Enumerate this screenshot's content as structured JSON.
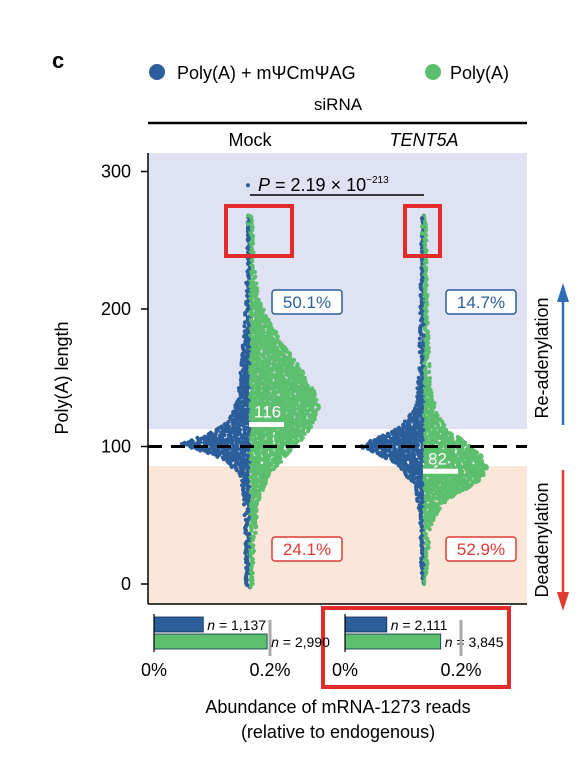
{
  "panel_label": "c",
  "colors": {
    "blue": "#2b5e9b",
    "green": "#5cbf6e",
    "top_bg": "#dfe2f2",
    "bottom_bg": "#fbe6da",
    "red_box": "#e32b2b",
    "arrow_blue": "#2f6db5",
    "arrow_red": "#e03a33",
    "pct_blue": "#2b5e9b",
    "pct_red": "#e03a33"
  },
  "chart_data": [
    {
      "type": "scatter",
      "subtype": "beeswarm-violin",
      "legend_position": "top",
      "series": [
        {
          "name": "Poly(A) + mΨCmΨAG",
          "color_key": "blue"
        },
        {
          "name": "Poly(A)",
          "color_key": "green"
        }
      ],
      "group_header": "siRNA",
      "categories": [
        "Mock",
        "TENT5A"
      ],
      "ylabel": "Poly(A) length",
      "ylim": [
        -10,
        315
      ],
      "yticks": [
        "0",
        "100",
        "200",
        "300"
      ],
      "threshold_line": 100,
      "median_labels": [
        {
          "category": "Mock",
          "value": 116,
          "label": "116"
        },
        {
          "category": "TENT5A",
          "value": 82,
          "label": "82"
        }
      ],
      "percent_labels": [
        {
          "category": "Mock",
          "region": "re-adenylated",
          "label": "50.1%"
        },
        {
          "category": "Mock",
          "region": "deadenylated",
          "label": "24.1%"
        },
        {
          "category": "TENT5A",
          "region": "re-adenylated",
          "label": "14.7%"
        },
        {
          "category": "TENT5A",
          "region": "deadenylated",
          "label": "52.9%"
        }
      ],
      "p_value": {
        "prefix": "P",
        "text": " = 2.19 × 10",
        "exponent": "−213"
      },
      "right_labels": {
        "top": "Re-adenylation",
        "bottom": "Deadenylation"
      }
    },
    {
      "type": "bar",
      "orientation": "horizontal",
      "xlabel": "Abundance of mRNA-1273 reads",
      "xlabel_sub": "(relative to endogenous)",
      "xlim": [
        0,
        0.25
      ],
      "xtick_labels": [
        "0%",
        "0.2%"
      ],
      "groups": [
        {
          "category": "Mock",
          "bars": [
            {
              "series": "Poly(A) + mΨCmΨAG",
              "value": 0.085,
              "n_label": "n = 1,137"
            },
            {
              "series": "Poly(A)",
              "value": 0.195,
              "n_label": "n = 2,990"
            }
          ]
        },
        {
          "category": "TENT5A",
          "bars": [
            {
              "series": "Poly(A) + mΨCmΨAG",
              "value": 0.072,
              "n_label": "n = 2,111"
            },
            {
              "series": "Poly(A)",
              "value": 0.165,
              "n_label": "n = 3,845"
            }
          ]
        }
      ]
    }
  ]
}
